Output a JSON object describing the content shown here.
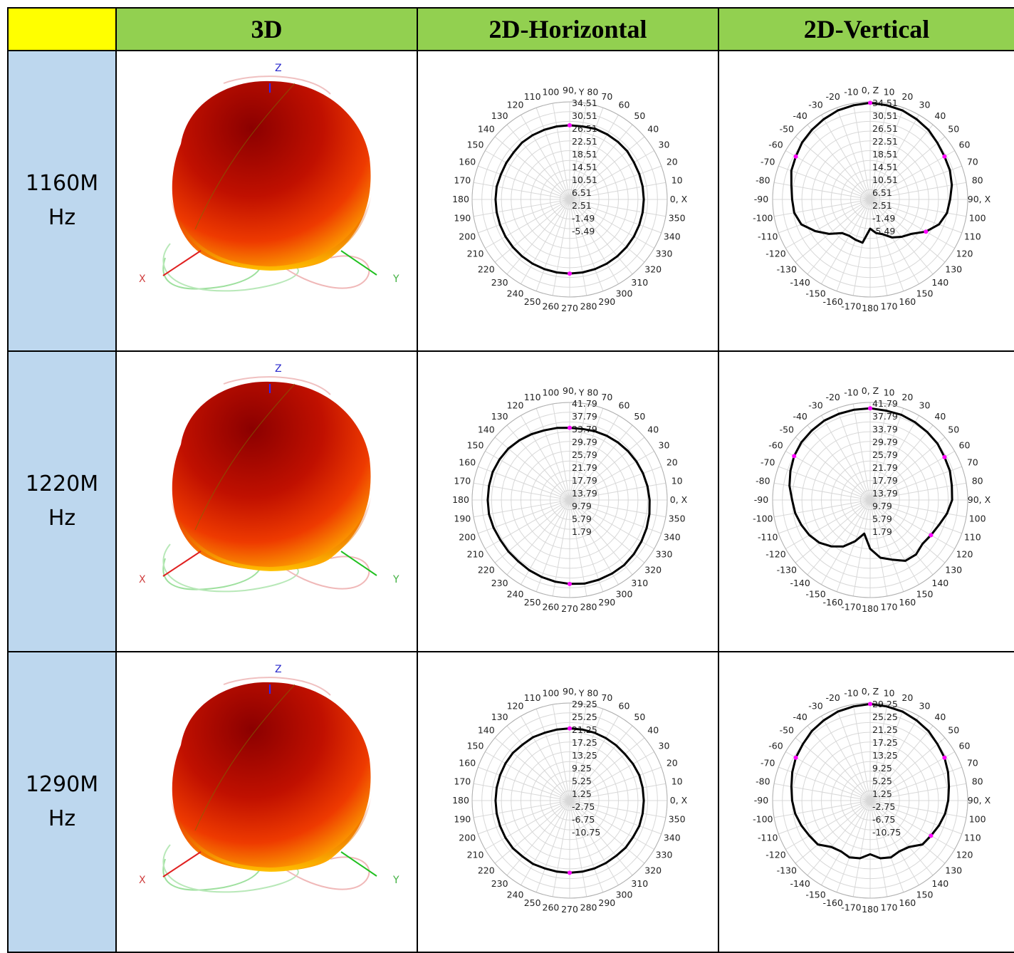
{
  "header": {
    "col_3d": "3D",
    "col_horizontal": "2D-Horizontal",
    "col_vertical": "2D-Vertical"
  },
  "axes_3d": {
    "x": "X",
    "y": "Y",
    "z": "Z"
  },
  "colors": {
    "corner": "#ffff00",
    "header": "#92d050",
    "freq": "#bdd7ee",
    "marker": "#ff00ff",
    "curve": "#000000"
  },
  "rows": [
    {
      "freq_line1": "1160M",
      "freq_line2": "Hz",
      "horizontal": {
        "angle_labels": [
          "0, X",
          "10",
          "20",
          "30",
          "40",
          "50",
          "60",
          "70",
          "Y 80",
          "90,",
          "100",
          "110",
          "120",
          "130",
          "140",
          "150",
          "160",
          "170",
          "180",
          "190",
          "200",
          "210",
          "220",
          "230",
          "240",
          "250",
          "260",
          "270",
          "280",
          "290",
          "300",
          "310",
          "320",
          "330",
          "340",
          "350"
        ],
        "ring_labels": [
          "34.51",
          "30.51",
          "26.51",
          "22.51",
          "18.51",
          "14.51",
          "10.51",
          "6.51",
          "2.51",
          "-1.49",
          "-5.49"
        ],
        "radii": [
          0.76,
          0.76,
          0.76,
          0.76,
          0.77,
          0.77,
          0.77,
          0.77,
          0.76,
          0.76,
          0.76,
          0.76,
          0.76,
          0.76,
          0.75,
          0.75,
          0.75,
          0.76,
          0.76,
          0.76,
          0.76,
          0.76,
          0.76,
          0.76,
          0.76,
          0.76,
          0.76,
          0.76,
          0.76,
          0.76,
          0.76,
          0.76,
          0.76,
          0.76,
          0.76,
          0.76
        ]
      },
      "vertical": {
        "angle_labels": [
          "0, Z",
          "10",
          "20",
          "30",
          "40",
          "50",
          "60",
          "70",
          "80",
          "90, X",
          "100",
          "110",
          "120",
          "130",
          "140",
          "150",
          "160",
          "170",
          "180",
          "-170",
          "-160",
          "-150",
          "-140",
          "-130",
          "-120",
          "-110",
          "-100",
          "-90",
          "-80",
          "-70",
          "-60",
          "-50",
          "-40",
          "-30",
          "-20",
          "-10"
        ],
        "ring_labels": [
          "34.51",
          "30.51",
          "26.51",
          "22.51",
          "18.51",
          "14.51",
          "10.51",
          "6.51",
          "2.51",
          "-1.49",
          "-5.49"
        ],
        "radii": [
          0.99,
          0.98,
          0.97,
          0.95,
          0.93,
          0.9,
          0.88,
          0.87,
          0.85,
          0.82,
          0.8,
          0.75,
          0.66,
          0.55,
          0.5,
          0.45,
          0.38,
          0.35,
          0.3,
          0.45,
          0.44,
          0.43,
          0.45,
          0.55,
          0.65,
          0.75,
          0.79,
          0.8,
          0.82,
          0.86,
          0.88,
          0.91,
          0.93,
          0.95,
          0.97,
          0.98
        ]
      }
    },
    {
      "freq_line1": "1220M",
      "freq_line2": "Hz",
      "horizontal": {
        "angle_labels": [
          "0, X",
          "10",
          "20",
          "30",
          "40",
          "50",
          "60",
          "70",
          "Y 80",
          "90,",
          "100",
          "110",
          "120",
          "130",
          "140",
          "150",
          "160",
          "170",
          "180",
          "190",
          "200",
          "210",
          "220",
          "230",
          "240",
          "250",
          "260",
          "270",
          "280",
          "290",
          "300",
          "310",
          "320",
          "330",
          "340",
          "350"
        ],
        "ring_labels": [
          "41.79",
          "37.79",
          "33.79",
          "29.79",
          "25.79",
          "21.79",
          "17.79",
          "13.79",
          "9.79",
          "5.79",
          "1.79"
        ],
        "radii": [
          0.82,
          0.81,
          0.8,
          0.79,
          0.78,
          0.77,
          0.76,
          0.75,
          0.74,
          0.74,
          0.75,
          0.76,
          0.78,
          0.8,
          0.82,
          0.83,
          0.84,
          0.84,
          0.84,
          0.84,
          0.83,
          0.82,
          0.82,
          0.82,
          0.83,
          0.84,
          0.85,
          0.86,
          0.87,
          0.87,
          0.87,
          0.87,
          0.86,
          0.85,
          0.84,
          0.83
        ]
      },
      "vertical": {
        "angle_labels": [
          "0, Z",
          "10",
          "20",
          "30",
          "40",
          "50",
          "60",
          "70",
          "80",
          "90, X",
          "100",
          "110",
          "120",
          "130",
          "140",
          "150",
          "160",
          "170",
          "180",
          "-170",
          "-160",
          "-150",
          "-140",
          "-130",
          "-120",
          "-110",
          "-100",
          "-90",
          "-80",
          "-70",
          "-60",
          "-50",
          "-40",
          "-30",
          "-20",
          "-10"
        ],
        "ring_labels": [
          "41.79",
          "37.79",
          "33.79",
          "29.79",
          "25.79",
          "21.79",
          "17.79",
          "13.79",
          "9.79",
          "5.79",
          "1.79"
        ],
        "radii": [
          0.94,
          0.93,
          0.93,
          0.92,
          0.91,
          0.9,
          0.88,
          0.87,
          0.85,
          0.84,
          0.8,
          0.75,
          0.72,
          0.7,
          0.73,
          0.72,
          0.65,
          0.6,
          0.5,
          0.35,
          0.45,
          0.55,
          0.62,
          0.68,
          0.72,
          0.75,
          0.78,
          0.8,
          0.84,
          0.87,
          0.9,
          0.92,
          0.93,
          0.94,
          0.94,
          0.94
        ]
      }
    },
    {
      "freq_line1": "1290M",
      "freq_line2": "Hz",
      "horizontal": {
        "angle_labels": [
          "0, X",
          "10",
          "20",
          "30",
          "40",
          "50",
          "60",
          "70",
          "Y 80",
          "90,",
          "100",
          "110",
          "120",
          "130",
          "140",
          "150",
          "160",
          "170",
          "180",
          "190",
          "200",
          "210",
          "220",
          "230",
          "240",
          "250",
          "260",
          "270",
          "280",
          "290",
          "300",
          "310",
          "320",
          "330",
          "340",
          "350"
        ],
        "ring_labels": [
          "29.25",
          "25.25",
          "21.25",
          "17.25",
          "13.25",
          "9.25",
          "5.25",
          "1.25",
          "-2.75",
          "-6.75",
          "-10.75"
        ],
        "radii": [
          0.76,
          0.76,
          0.76,
          0.75,
          0.74,
          0.74,
          0.74,
          0.74,
          0.74,
          0.74,
          0.74,
          0.74,
          0.75,
          0.75,
          0.76,
          0.76,
          0.76,
          0.76,
          0.76,
          0.76,
          0.76,
          0.76,
          0.76,
          0.75,
          0.75,
          0.74,
          0.74,
          0.74,
          0.74,
          0.74,
          0.74,
          0.74,
          0.75,
          0.75,
          0.76,
          0.76
        ]
      },
      "vertical": {
        "angle_labels": [
          "0, Z",
          "10",
          "20",
          "30",
          "40",
          "50",
          "60",
          "70",
          "80",
          "90, X",
          "100",
          "110",
          "120",
          "130",
          "140",
          "150",
          "160",
          "170",
          "180",
          "-170",
          "-160",
          "-150",
          "-140",
          "-130",
          "-120",
          "-110",
          "-100",
          "-90",
          "-80",
          "-70",
          "-60",
          "-50",
          "-40",
          "-30",
          "-20",
          "-10"
        ],
        "ring_labels": [
          "29.25",
          "25.25",
          "21.25",
          "17.25",
          "13.25",
          "9.25",
          "5.25",
          "1.25",
          "-2.75",
          "-6.75",
          "-10.75"
        ],
        "radii": [
          0.99,
          0.98,
          0.97,
          0.95,
          0.93,
          0.9,
          0.88,
          0.85,
          0.82,
          0.8,
          0.78,
          0.75,
          0.72,
          0.7,
          0.62,
          0.6,
          0.62,
          0.6,
          0.55,
          0.6,
          0.62,
          0.6,
          0.62,
          0.7,
          0.72,
          0.75,
          0.78,
          0.8,
          0.82,
          0.85,
          0.88,
          0.9,
          0.93,
          0.95,
          0.97,
          0.98
        ]
      }
    }
  ]
}
